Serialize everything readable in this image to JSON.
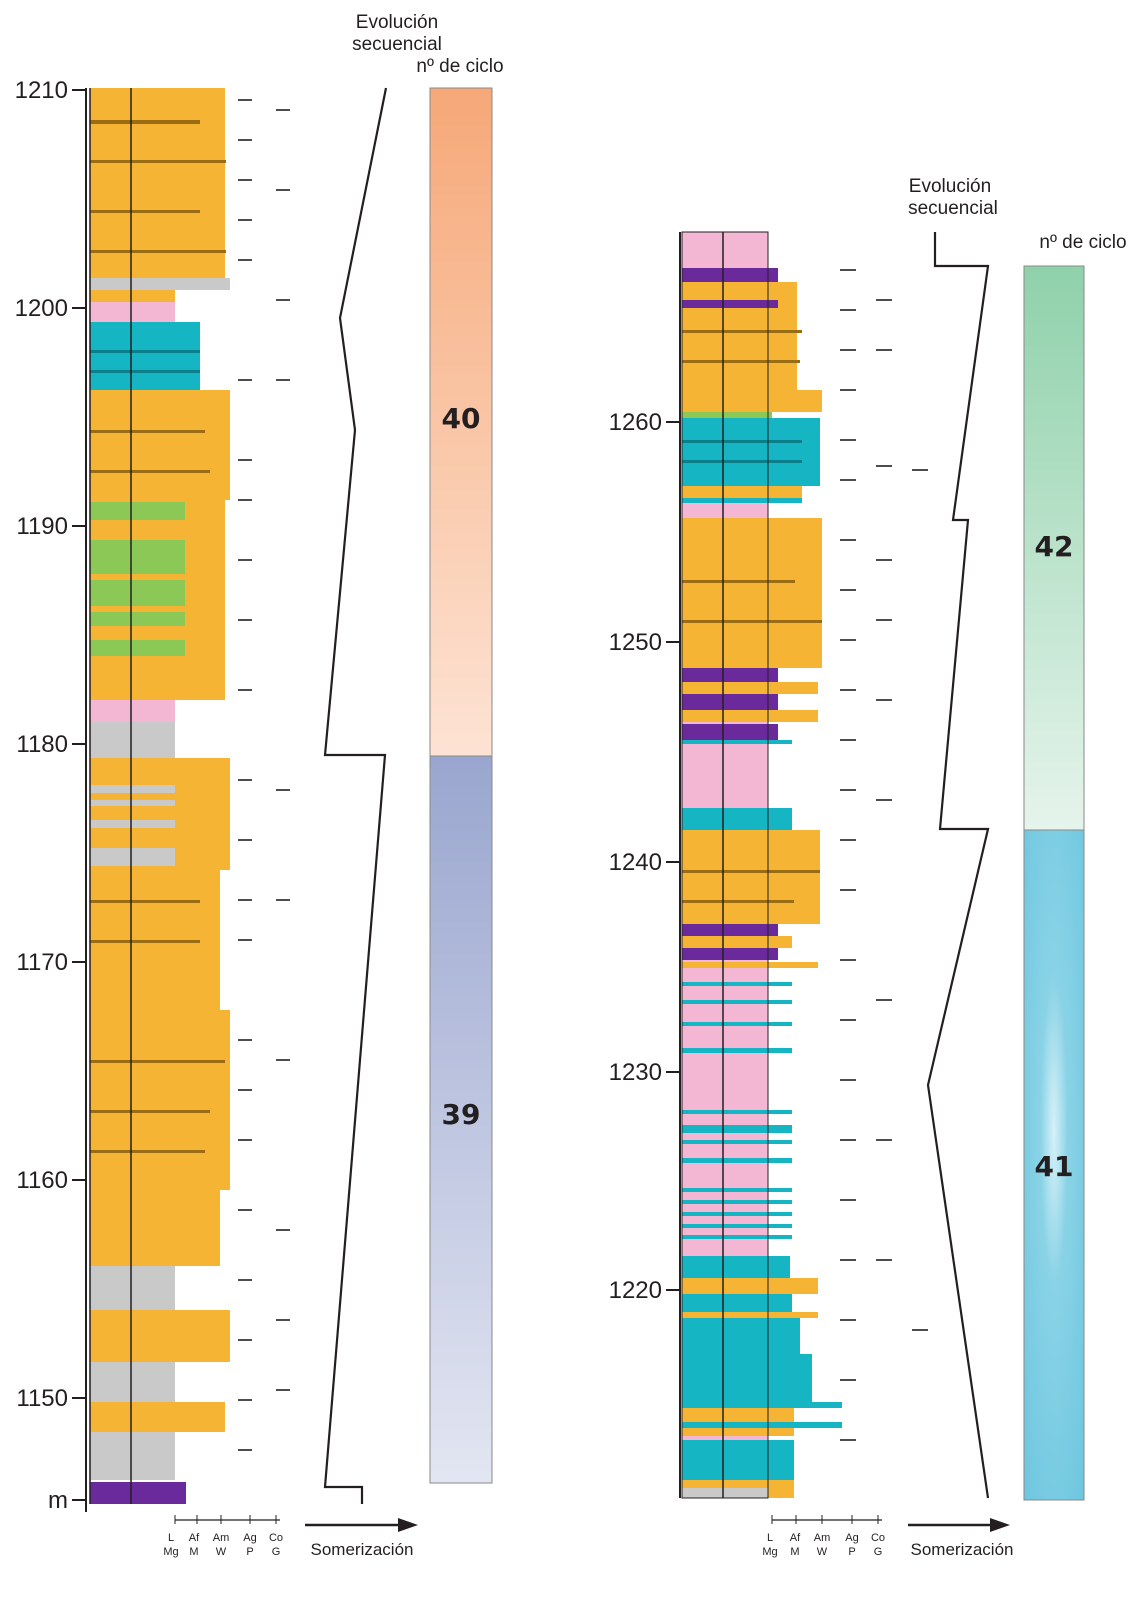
{
  "colors": {
    "sandstone": "#f5b434",
    "sandstone_dark": "#c8901f",
    "sandstone_line": "#9a6d14",
    "cyan": "#16b5c3",
    "pink": "#f4b7d3",
    "gray": "#c9c9c9",
    "green": "#8cc855",
    "purple": "#6a2a9b",
    "cycle40_top": "#f6a878",
    "cycle40_bottom": "#fde3d4",
    "cycle39_top": "#9aa6cf",
    "cycle39_bottom": "#e3e6f2",
    "cycle42_top": "#8fd1aa",
    "cycle42_bottom": "#e6f4ec",
    "cycle41_main": "#6cc6df",
    "cycle41_light": "#d7f1f8"
  },
  "left_log": {
    "depth_labels": [
      "1210",
      "1200",
      "1190",
      "1180",
      "1170",
      "1160",
      "1150",
      "m"
    ],
    "header": {
      "line1": "Evolución",
      "line2": "secuencial",
      "line3": "nº de ciclo"
    },
    "cycles": [
      {
        "label": "40"
      },
      {
        "label": "39"
      }
    ],
    "texture_row1": [
      "L",
      "Af",
      "Am",
      "Ag",
      "Co"
    ],
    "texture_row2": [
      "Mg",
      "M",
      "W",
      "P",
      "G"
    ],
    "arrow_label": "Somerización"
  },
  "right_log": {
    "depth_labels": [
      "1260",
      "1250",
      "1240",
      "1230",
      "1220"
    ],
    "header": {
      "line1": "Evolución",
      "line2": "secuencial",
      "line3": "nº de ciclo"
    },
    "cycles": [
      {
        "label": "42"
      },
      {
        "label": "41"
      }
    ],
    "texture_row1": [
      "L",
      "Af",
      "Am",
      "Ag",
      "Co"
    ],
    "texture_row2": [
      "Mg",
      "M",
      "W",
      "P",
      "G"
    ],
    "arrow_label": "Somerización"
  }
}
